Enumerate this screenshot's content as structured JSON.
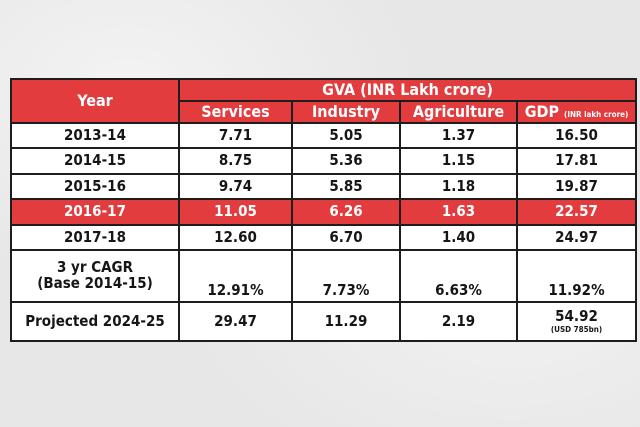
{
  "chart_data": {
    "type": "table",
    "header": {
      "year": "Year",
      "group": "GVA (INR Lakh crore)",
      "columns": [
        "Services",
        "Industry",
        "Agriculture"
      ],
      "gdp": "GDP",
      "gdp_unit": "(INR lakh crore)"
    },
    "rows": [
      {
        "label": "2013-14",
        "values": [
          "7.71",
          "5.05",
          "1.37",
          "16.50"
        ],
        "highlight": false
      },
      {
        "label": "2014-15",
        "values": [
          "8.75",
          "5.36",
          "1.15",
          "17.81"
        ],
        "highlight": false
      },
      {
        "label": "2015-16",
        "values": [
          "9.74",
          "5.85",
          "1.18",
          "19.87"
        ],
        "highlight": false
      },
      {
        "label": "2016-17",
        "values": [
          "11.05",
          "6.26",
          "1.63",
          "22.57"
        ],
        "highlight": true
      },
      {
        "label": "2017-18",
        "values": [
          "12.60",
          "6.70",
          "1.40",
          "24.97"
        ],
        "highlight": false
      }
    ],
    "cagr": {
      "label_line1": "3 yr CAGR",
      "label_line2": "(Base 2014-15)",
      "values": [
        "12.91%",
        "7.73%",
        "6.63%",
        "11.92%"
      ]
    },
    "projected": {
      "label": "Projected 2024-25",
      "values": [
        "29.47",
        "11.29",
        "2.19",
        "54.92"
      ],
      "gdp_note": "(USD 785bn)"
    },
    "colors": {
      "header_red": "#e23c3e",
      "text": "#161616",
      "white": "#ffffff"
    }
  }
}
